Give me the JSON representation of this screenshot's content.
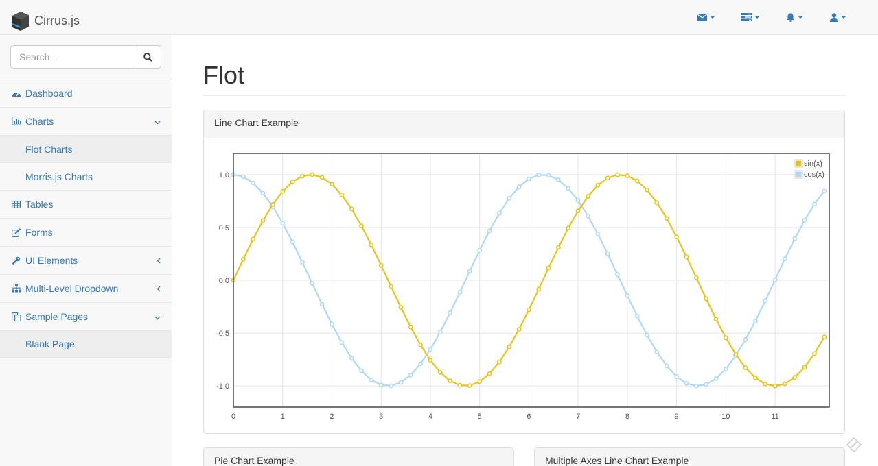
{
  "app": {
    "brand": "Cirrus.js"
  },
  "navbar": {
    "icons": [
      "envelope-icon",
      "tasks-icon",
      "bell-icon",
      "user-icon"
    ]
  },
  "sidebar": {
    "search_placeholder": "Search...",
    "items": [
      {
        "label": "Dashboard",
        "icon": "dashboard-icon"
      },
      {
        "label": "Charts",
        "icon": "bar-chart-icon"
      },
      {
        "label": "Flot Charts"
      },
      {
        "label": "Morris.js Charts"
      },
      {
        "label": "Tables",
        "icon": "table-icon"
      },
      {
        "label": "Forms",
        "icon": "edit-icon"
      },
      {
        "label": "UI Elements",
        "icon": "wrench-icon"
      },
      {
        "label": "Multi-Level Dropdown",
        "icon": "sitemap-icon"
      },
      {
        "label": "Sample Pages",
        "icon": "files-icon"
      },
      {
        "label": "Blank Page"
      }
    ]
  },
  "main": {
    "title": "Flot",
    "panels": {
      "line": "Line Chart Example",
      "pie": "Pie Chart Example",
      "multi": "Multiple Axes Line Chart Example"
    }
  },
  "colors": {
    "link": "#337ab7",
    "sin": "#e8c31a",
    "cos": "#afd8f8"
  },
  "chart_data": {
    "type": "line",
    "title": "",
    "xlim": [
      0,
      12.1
    ],
    "ylim": [
      -1.2,
      1.2
    ],
    "xticks": [
      "0",
      "1",
      "2",
      "3",
      "4",
      "5",
      "6",
      "7",
      "8",
      "9",
      "10",
      "11"
    ],
    "yticks": [
      "1.0",
      "0.5",
      "0.0",
      "-0.5",
      "-1.0"
    ],
    "grid": true,
    "legend_position": "top-right",
    "series": [
      {
        "name": "sin(x)",
        "function": "sin",
        "x_start": 0,
        "x_end": 12.0,
        "x_step": 0.2
      },
      {
        "name": "cos(x)",
        "function": "cos",
        "x_start": 0,
        "x_end": 12.0,
        "x_step": 0.2
      }
    ]
  }
}
